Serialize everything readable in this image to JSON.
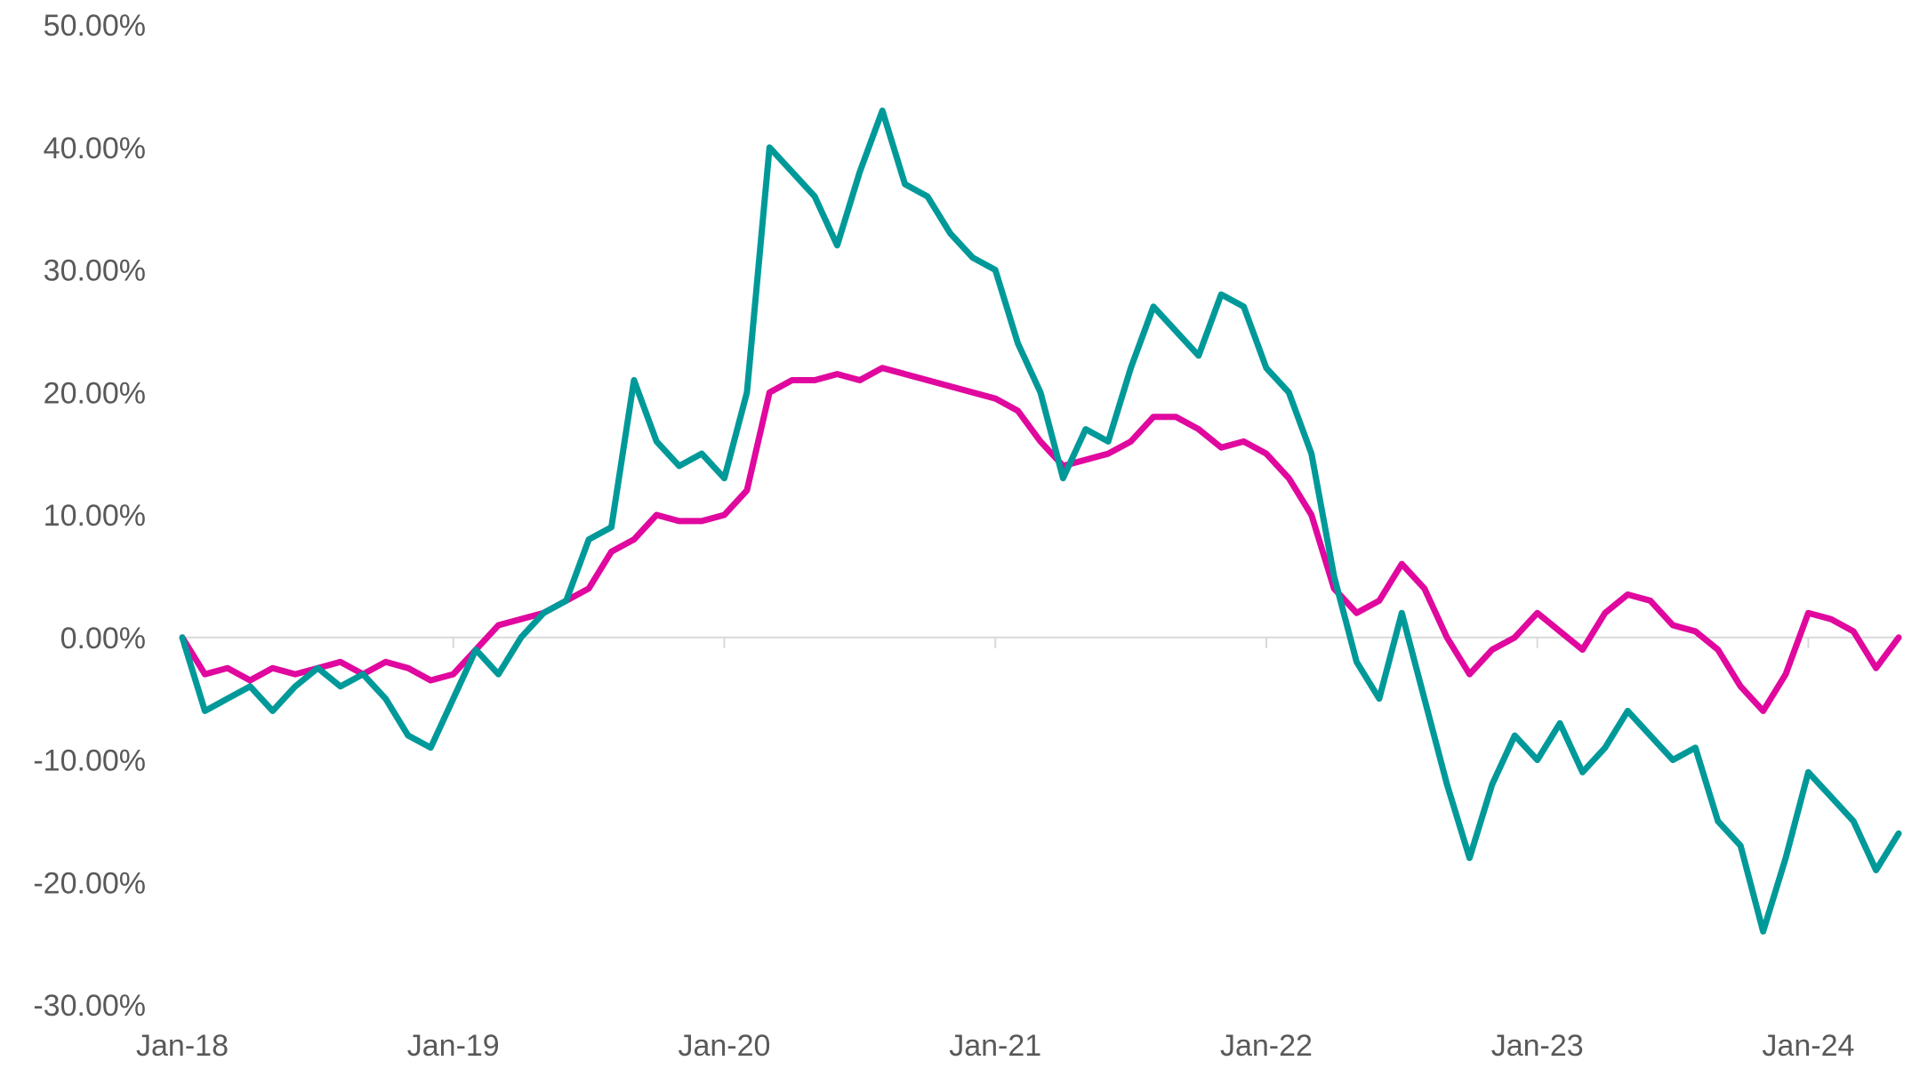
{
  "chart_data": {
    "type": "line",
    "title": "",
    "xlabel": "",
    "ylabel": "",
    "ylim": [
      -30,
      50
    ],
    "y_ticks": [
      50,
      40,
      30,
      20,
      10,
      0,
      -10,
      -20,
      -30
    ],
    "y_tick_labels": [
      "50.00%",
      "40.00%",
      "30.00%",
      "20.00%",
      "10.00%",
      "0.00%",
      "-10.00%",
      "-20.00%",
      "-30.00%"
    ],
    "x_tick_labels": [
      "Jan-18",
      "Jan-19",
      "Jan-20",
      "Jan-21",
      "Jan-22",
      "Jan-23",
      "Jan-24"
    ],
    "x_range": [
      "2018-01",
      "2024-05"
    ],
    "grid": false,
    "legend": "none",
    "series": [
      {
        "color": "#E0089E",
        "points": [
          [
            "2018-01",
            0
          ],
          [
            "2018-02",
            -3
          ],
          [
            "2018-03",
            -2.5
          ],
          [
            "2018-04",
            -3.5
          ],
          [
            "2018-05",
            -2.5
          ],
          [
            "2018-06",
            -3
          ],
          [
            "2018-07",
            -2.5
          ],
          [
            "2018-08",
            -2
          ],
          [
            "2018-09",
            -3
          ],
          [
            "2018-10",
            -2
          ],
          [
            "2018-11",
            -2.5
          ],
          [
            "2018-12",
            -3.5
          ],
          [
            "2019-01",
            -3
          ],
          [
            "2019-02",
            -1
          ],
          [
            "2019-03",
            1
          ],
          [
            "2019-04",
            1.5
          ],
          [
            "2019-05",
            2
          ],
          [
            "2019-06",
            3
          ],
          [
            "2019-07",
            4
          ],
          [
            "2019-08",
            7
          ],
          [
            "2019-09",
            8
          ],
          [
            "2019-10",
            10
          ],
          [
            "2019-11",
            9.5
          ],
          [
            "2019-12",
            9.5
          ],
          [
            "2020-01",
            10
          ],
          [
            "2020-02",
            12
          ],
          [
            "2020-03",
            20
          ],
          [
            "2020-04",
            21
          ],
          [
            "2020-05",
            21
          ],
          [
            "2020-06",
            21.5
          ],
          [
            "2020-07",
            21
          ],
          [
            "2020-08",
            22
          ],
          [
            "2020-09",
            21.5
          ],
          [
            "2020-10",
            21
          ],
          [
            "2020-11",
            20.5
          ],
          [
            "2020-12",
            20
          ],
          [
            "2021-01",
            19.5
          ],
          [
            "2021-02",
            18.5
          ],
          [
            "2021-03",
            16
          ],
          [
            "2021-04",
            14
          ],
          [
            "2021-05",
            14.5
          ],
          [
            "2021-06",
            15
          ],
          [
            "2021-07",
            16
          ],
          [
            "2021-08",
            18
          ],
          [
            "2021-09",
            18
          ],
          [
            "2021-10",
            17
          ],
          [
            "2021-11",
            15.5
          ],
          [
            "2021-12",
            16
          ],
          [
            "2022-01",
            15
          ],
          [
            "2022-02",
            13
          ],
          [
            "2022-03",
            10
          ],
          [
            "2022-04",
            4
          ],
          [
            "2022-05",
            2
          ],
          [
            "2022-06",
            3
          ],
          [
            "2022-07",
            6
          ],
          [
            "2022-08",
            4
          ],
          [
            "2022-09",
            0
          ],
          [
            "2022-10",
            -3
          ],
          [
            "2022-11",
            -1
          ],
          [
            "2022-12",
            0
          ],
          [
            "2023-01",
            2
          ],
          [
            "2023-02",
            0.5
          ],
          [
            "2023-03",
            -1
          ],
          [
            "2023-04",
            2
          ],
          [
            "2023-05",
            3.5
          ],
          [
            "2023-06",
            3
          ],
          [
            "2023-07",
            1
          ],
          [
            "2023-08",
            0.5
          ],
          [
            "2023-09",
            -1
          ],
          [
            "2023-10",
            -4
          ],
          [
            "2023-11",
            -6
          ],
          [
            "2023-12",
            -3
          ],
          [
            "2024-01",
            2
          ],
          [
            "2024-02",
            1.5
          ],
          [
            "2024-03",
            0.5
          ],
          [
            "2024-04",
            -2.5
          ],
          [
            "2024-05",
            0
          ]
        ]
      },
      {
        "color": "#009999",
        "points": [
          [
            "2018-01",
            0
          ],
          [
            "2018-02",
            -6
          ],
          [
            "2018-03",
            -5
          ],
          [
            "2018-04",
            -4
          ],
          [
            "2018-05",
            -6
          ],
          [
            "2018-06",
            -4
          ],
          [
            "2018-07",
            -2.5
          ],
          [
            "2018-08",
            -4
          ],
          [
            "2018-09",
            -3
          ],
          [
            "2018-10",
            -5
          ],
          [
            "2018-11",
            -8
          ],
          [
            "2018-12",
            -9
          ],
          [
            "2019-01",
            -5
          ],
          [
            "2019-02",
            -1
          ],
          [
            "2019-03",
            -3
          ],
          [
            "2019-04",
            0
          ],
          [
            "2019-05",
            2
          ],
          [
            "2019-06",
            3
          ],
          [
            "2019-07",
            8
          ],
          [
            "2019-08",
            9
          ],
          [
            "2019-09",
            21
          ],
          [
            "2019-10",
            16
          ],
          [
            "2019-11",
            14
          ],
          [
            "2019-12",
            15
          ],
          [
            "2020-01",
            13
          ],
          [
            "2020-02",
            20
          ],
          [
            "2020-03",
            40
          ],
          [
            "2020-04",
            38
          ],
          [
            "2020-05",
            36
          ],
          [
            "2020-06",
            32
          ],
          [
            "2020-07",
            38
          ],
          [
            "2020-08",
            43
          ],
          [
            "2020-09",
            37
          ],
          [
            "2020-10",
            36
          ],
          [
            "2020-11",
            33
          ],
          [
            "2020-12",
            31
          ],
          [
            "2021-01",
            30
          ],
          [
            "2021-02",
            24
          ],
          [
            "2021-03",
            20
          ],
          [
            "2021-04",
            13
          ],
          [
            "2021-05",
            17
          ],
          [
            "2021-06",
            16
          ],
          [
            "2021-07",
            22
          ],
          [
            "2021-08",
            27
          ],
          [
            "2021-09",
            25
          ],
          [
            "2021-10",
            23
          ],
          [
            "2021-11",
            28
          ],
          [
            "2021-12",
            27
          ],
          [
            "2022-01",
            22
          ],
          [
            "2022-02",
            20
          ],
          [
            "2022-03",
            15
          ],
          [
            "2022-04",
            5
          ],
          [
            "2022-05",
            -2
          ],
          [
            "2022-06",
            -5
          ],
          [
            "2022-07",
            2
          ],
          [
            "2022-08",
            -5
          ],
          [
            "2022-09",
            -12
          ],
          [
            "2022-10",
            -18
          ],
          [
            "2022-11",
            -12
          ],
          [
            "2022-12",
            -8
          ],
          [
            "2023-01",
            -10
          ],
          [
            "2023-02",
            -7
          ],
          [
            "2023-03",
            -11
          ],
          [
            "2023-04",
            -9
          ],
          [
            "2023-05",
            -6
          ],
          [
            "2023-06",
            -8
          ],
          [
            "2023-07",
            -10
          ],
          [
            "2023-08",
            -9
          ],
          [
            "2023-09",
            -15
          ],
          [
            "2023-10",
            -17
          ],
          [
            "2023-11",
            -24
          ],
          [
            "2023-12",
            -18
          ],
          [
            "2024-01",
            -11
          ],
          [
            "2024-02",
            -13
          ],
          [
            "2024-03",
            -15
          ],
          [
            "2024-04",
            -19
          ],
          [
            "2024-05",
            -16
          ]
        ]
      }
    ]
  }
}
